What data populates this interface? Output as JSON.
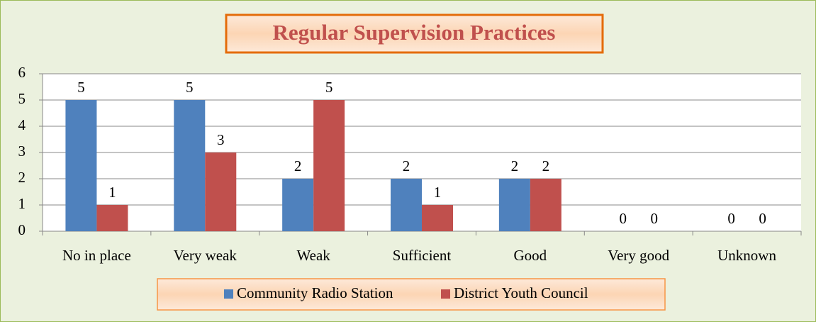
{
  "chart_data": {
    "type": "bar",
    "title": "Regular Supervision Practices",
    "categories": [
      "No in place",
      "Very weak",
      "Weak",
      "Sufficient",
      "Good",
      "Very good",
      "Unknown"
    ],
    "series": [
      {
        "name": "Community Radio Station",
        "color": "#4f81bd",
        "values": [
          5,
          5,
          2,
          2,
          2,
          0,
          0
        ]
      },
      {
        "name": "District Youth Council",
        "color": "#c0504d",
        "values": [
          1,
          3,
          5,
          1,
          2,
          0,
          0
        ]
      }
    ],
    "ylim": [
      0,
      6
    ],
    "yticks": [
      0,
      1,
      2,
      3,
      4,
      5,
      6
    ],
    "grid": true,
    "legend": "bottom"
  }
}
